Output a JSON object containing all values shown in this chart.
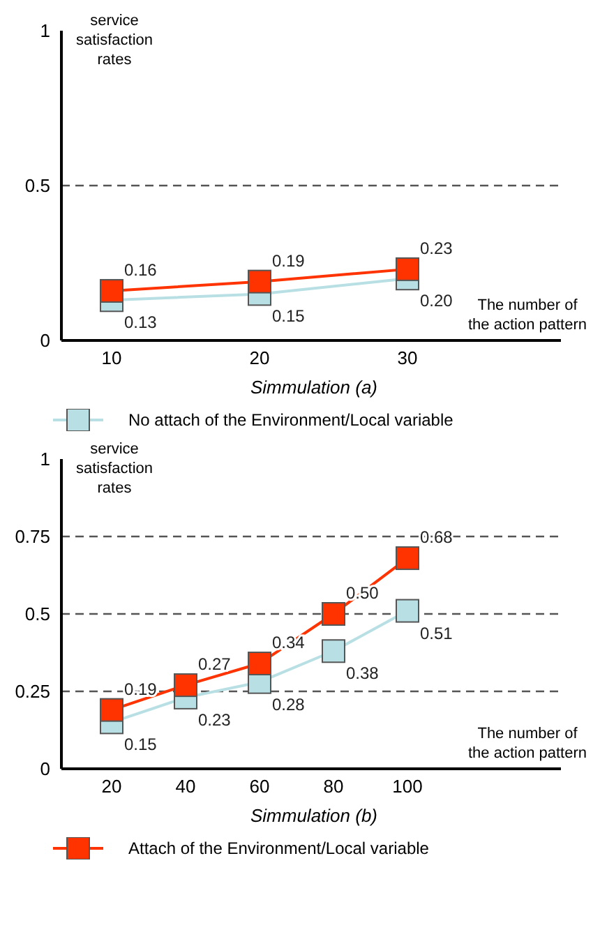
{
  "chart_data": [
    {
      "type": "line",
      "title": "Simmulation (a)",
      "ylabel": "service satisfaction rates",
      "xlabel": "The number of the action pattern",
      "categories": [
        "10",
        "20",
        "30"
      ],
      "series": [
        {
          "name": "No attach of the Environment/Local variable",
          "color": "#b8e0e4",
          "values": [
            0.13,
            0.15,
            0.2
          ],
          "value_labels": [
            "0.13",
            "0.15",
            "0.20"
          ]
        },
        {
          "color": "#ff3300",
          "values": [
            0.16,
            0.19,
            0.23
          ],
          "value_labels": [
            "0.16",
            "0.19",
            "0.23"
          ]
        }
      ],
      "ylim": [
        0,
        1
      ],
      "yticks": [
        0,
        0.5,
        1
      ],
      "ref_lines": [
        {
          "axis": "y",
          "value": 0.5,
          "color": "#555555",
          "line_style": "dashed"
        }
      ],
      "marker": "square",
      "legend": "bottom",
      "grid": false
    },
    {
      "type": "line",
      "title": "Simmulation (b)",
      "ylabel": "service satisfaction rates",
      "xlabel": "The number of the action pattern",
      "categories": [
        "20",
        "40",
        "60",
        "80",
        "100"
      ],
      "series": [
        {
          "color": "#b8e0e4",
          "values": [
            0.15,
            0.23,
            0.28,
            0.38,
            0.51
          ],
          "value_labels": [
            "0.15",
            "0.23",
            "0.28",
            "0.38",
            "0.51"
          ]
        },
        {
          "name": "Attach of the Environment/Local variable",
          "color": "#ff3300",
          "values": [
            0.19,
            0.27,
            0.34,
            0.5,
            0.68
          ],
          "value_labels": [
            "0.19",
            "0.27",
            "0.34",
            "0.50",
            "0.68"
          ]
        }
      ],
      "ylim": [
        0,
        1
      ],
      "yticks": [
        0,
        0.25,
        0.5,
        0.75,
        1
      ],
      "ref_lines": [
        {
          "axis": "y",
          "value": 0.25,
          "color": "#555555",
          "line_style": "dashed"
        },
        {
          "axis": "y",
          "value": 0.5,
          "color": "#555555",
          "line_style": "dashed"
        },
        {
          "axis": "y",
          "value": 0.75,
          "color": "#555555",
          "line_style": "dashed"
        }
      ],
      "marker": "square",
      "legend": "bottom",
      "grid": false
    }
  ]
}
